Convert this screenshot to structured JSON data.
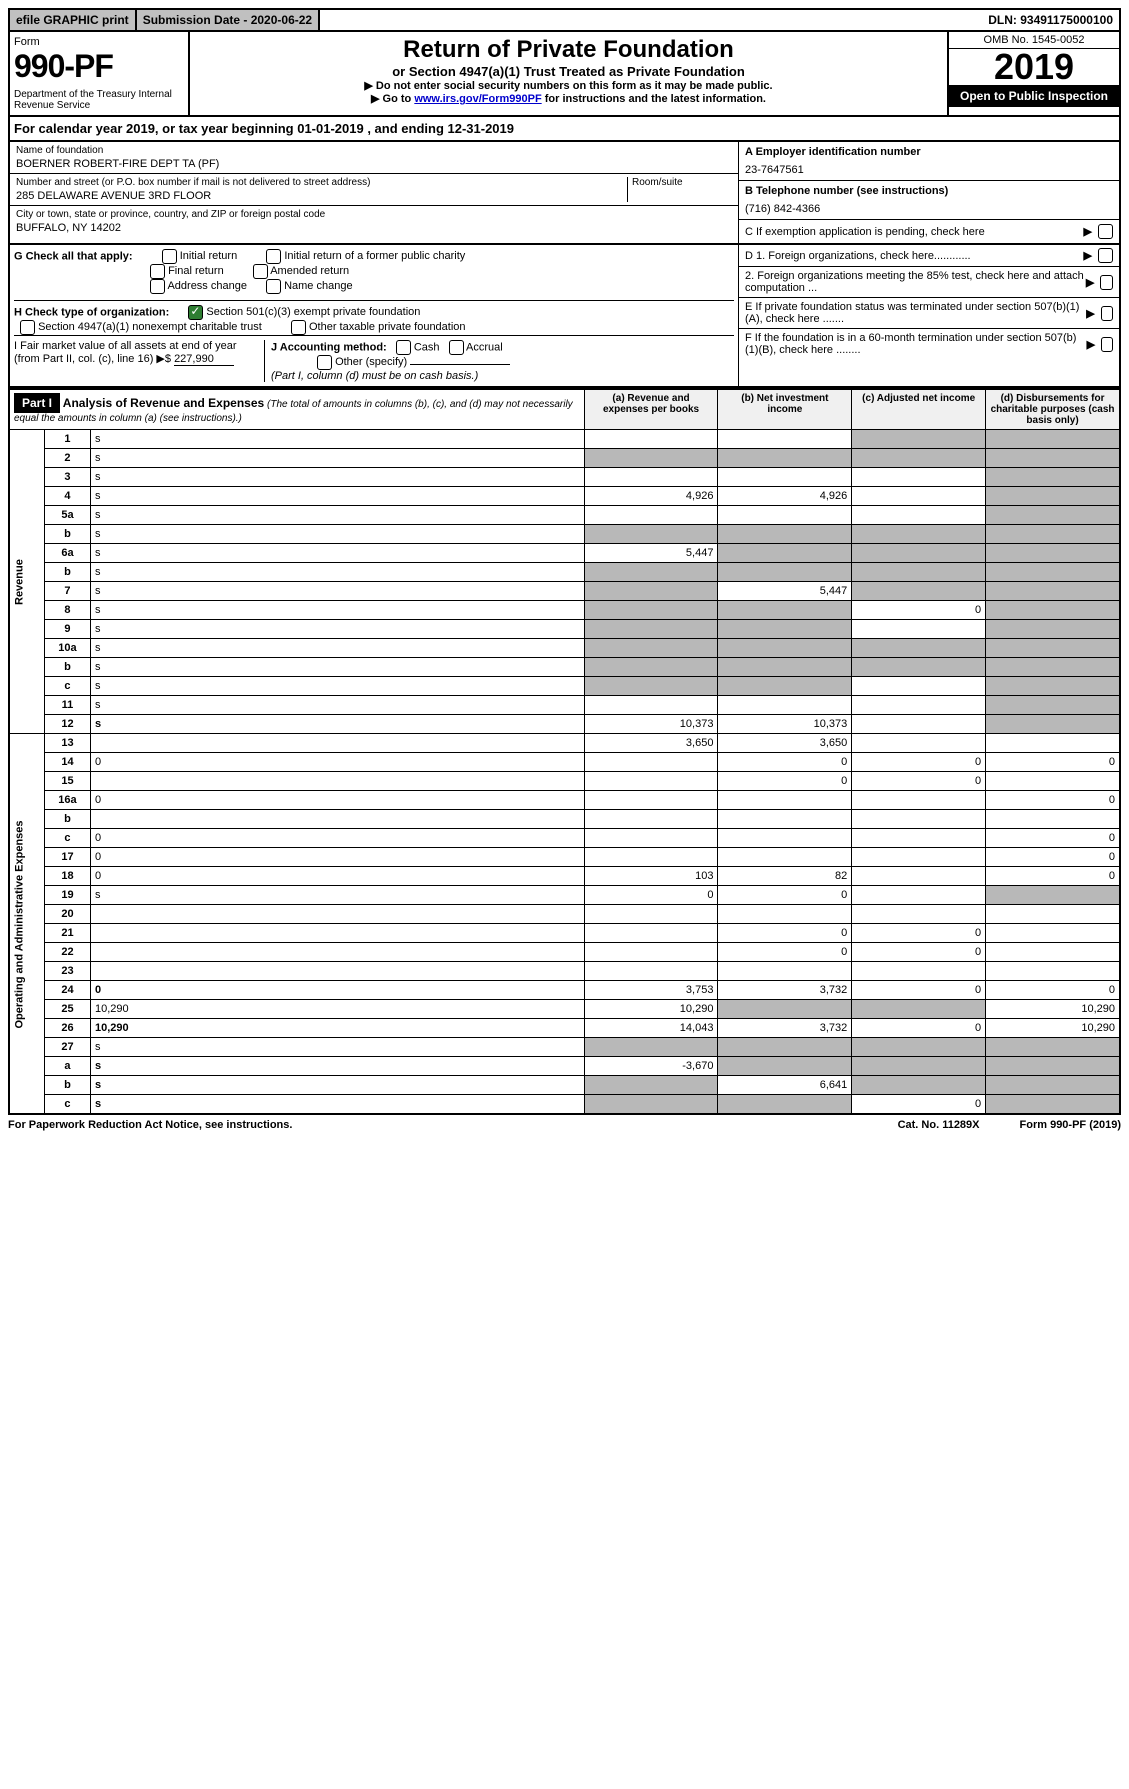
{
  "topbar": {
    "efile": "efile GRAPHIC print",
    "submission": "Submission Date - 2020-06-22",
    "dln": "DLN: 93491175000100"
  },
  "header": {
    "form_label": "Form",
    "form_number": "990-PF",
    "dept": "Department of the Treasury\nInternal Revenue Service",
    "title": "Return of Private Foundation",
    "subtitle": "or Section 4947(a)(1) Trust Treated as Private Foundation",
    "note1": "▶ Do not enter social security numbers on this form as it may be made public.",
    "note2_pre": "▶ Go to ",
    "note2_link": "www.irs.gov/Form990PF",
    "note2_post": " for instructions and the latest information.",
    "omb": "OMB No. 1545-0052",
    "year": "2019",
    "open": "Open to Public Inspection"
  },
  "cal_year": "For calendar year 2019, or tax year beginning 01-01-2019           , and ending 12-31-2019",
  "entity": {
    "name_label": "Name of foundation",
    "name": "BOERNER ROBERT-FIRE DEPT TA (PF)",
    "addr_label": "Number and street (or P.O. box number if mail is not delivered to street address)",
    "addr": "285 DELAWARE AVENUE 3RD FLOOR",
    "room_label": "Room/suite",
    "city_label": "City or town, state or province, country, and ZIP or foreign postal code",
    "city": "BUFFALO, NY  14202",
    "a_label": "A Employer identification number",
    "a_val": "23-7647561",
    "b_label": "B Telephone number (see instructions)",
    "b_val": "(716) 842-4366",
    "c_label": "C If exemption application is pending, check here"
  },
  "checks": {
    "g_label": "G Check all that apply:",
    "g_opts": [
      "Initial return",
      "Initial return of a former public charity",
      "Final return",
      "Amended return",
      "Address change",
      "Name change"
    ],
    "h_label": "H Check type of organization:",
    "h_opts": [
      "Section 501(c)(3) exempt private foundation",
      "Section 4947(a)(1) nonexempt charitable trust",
      "Other taxable private foundation"
    ],
    "i_label": "I Fair market value of all assets at end of year (from Part II, col. (c), line 16) ▶$",
    "i_val": "227,990",
    "j_label": "J Accounting method:",
    "j_opts": [
      "Cash",
      "Accrual",
      "Other (specify)"
    ],
    "j_note": "(Part I, column (d) must be on cash basis.)",
    "d1": "D 1. Foreign organizations, check here............",
    "d2": "2. Foreign organizations meeting the 85% test, check here and attach computation ...",
    "e": "E If private foundation status was terminated under section 507(b)(1)(A), check here .......",
    "f": "F If the foundation is in a 60-month termination under section 507(b)(1)(B), check here ........"
  },
  "part1": {
    "label": "Part I",
    "title": "Analysis of Revenue and Expenses",
    "note": "(The total of amounts in columns (b), (c), and (d) may not necessarily equal the amounts in column (a) (see instructions).)",
    "col_a": "(a) Revenue and expenses per books",
    "col_b": "(b) Net investment income",
    "col_c": "(c) Adjusted net income",
    "col_d": "(d) Disbursements for charitable purposes (cash basis only)"
  },
  "sections": {
    "revenue": "Revenue",
    "expenses": "Operating and Administrative Expenses"
  },
  "rows": [
    {
      "n": "1",
      "d": "s",
      "a": "",
      "b": "",
      "c": "s"
    },
    {
      "n": "2",
      "d": "s",
      "a": "s",
      "b": "s",
      "c": "s"
    },
    {
      "n": "3",
      "d": "s",
      "a": "",
      "b": "",
      "c": ""
    },
    {
      "n": "4",
      "d": "s",
      "a": "4,926",
      "b": "4,926",
      "c": ""
    },
    {
      "n": "5a",
      "d": "s",
      "a": "",
      "b": "",
      "c": ""
    },
    {
      "n": "b",
      "d": "s",
      "a": "s",
      "b": "s",
      "c": "s"
    },
    {
      "n": "6a",
      "d": "s",
      "a": "5,447",
      "b": "s",
      "c": "s"
    },
    {
      "n": "b",
      "d": "s",
      "a": "s",
      "b": "s",
      "c": "s"
    },
    {
      "n": "7",
      "d": "s",
      "a": "s",
      "b": "5,447",
      "c": "s"
    },
    {
      "n": "8",
      "d": "s",
      "a": "s",
      "b": "s",
      "c": "0"
    },
    {
      "n": "9",
      "d": "s",
      "a": "s",
      "b": "s",
      "c": ""
    },
    {
      "n": "10a",
      "d": "s",
      "a": "s",
      "b": "s",
      "c": "s"
    },
    {
      "n": "b",
      "d": "s",
      "a": "s",
      "b": "s",
      "c": "s"
    },
    {
      "n": "c",
      "d": "s",
      "a": "s",
      "b": "s",
      "c": ""
    },
    {
      "n": "11",
      "d": "s",
      "a": "",
      "b": "",
      "c": ""
    },
    {
      "n": "12",
      "d": "s",
      "a": "10,373",
      "b": "10,373",
      "c": "",
      "bold": true
    },
    {
      "n": "13",
      "d": "",
      "a": "3,650",
      "b": "3,650",
      "c": ""
    },
    {
      "n": "14",
      "d": "0",
      "a": "",
      "b": "0",
      "c": "0"
    },
    {
      "n": "15",
      "d": "",
      "a": "",
      "b": "0",
      "c": "0"
    },
    {
      "n": "16a",
      "d": "0",
      "a": "",
      "b": "",
      "c": ""
    },
    {
      "n": "b",
      "d": "",
      "a": "",
      "b": "",
      "c": ""
    },
    {
      "n": "c",
      "d": "0",
      "a": "",
      "b": "",
      "c": ""
    },
    {
      "n": "17",
      "d": "0",
      "a": "",
      "b": "",
      "c": ""
    },
    {
      "n": "18",
      "d": "0",
      "a": "103",
      "b": "82",
      "c": ""
    },
    {
      "n": "19",
      "d": "s",
      "a": "0",
      "b": "0",
      "c": ""
    },
    {
      "n": "20",
      "d": "",
      "a": "",
      "b": "",
      "c": ""
    },
    {
      "n": "21",
      "d": "",
      "a": "",
      "b": "0",
      "c": "0"
    },
    {
      "n": "22",
      "d": "",
      "a": "",
      "b": "0",
      "c": "0"
    },
    {
      "n": "23",
      "d": "",
      "a": "",
      "b": "",
      "c": ""
    },
    {
      "n": "24",
      "d": "0",
      "a": "3,753",
      "b": "3,732",
      "c": "0",
      "bold": true
    },
    {
      "n": "25",
      "d": "10,290",
      "a": "10,290",
      "b": "s",
      "c": "s"
    },
    {
      "n": "26",
      "d": "10,290",
      "a": "14,043",
      "b": "3,732",
      "c": "0",
      "bold": true
    },
    {
      "n": "27",
      "d": "s",
      "a": "s",
      "b": "s",
      "c": "s"
    },
    {
      "n": "a",
      "d": "s",
      "a": "-3,670",
      "b": "s",
      "c": "s",
      "bold": true
    },
    {
      "n": "b",
      "d": "s",
      "a": "s",
      "b": "6,641",
      "c": "s",
      "bold": true
    },
    {
      "n": "c",
      "d": "s",
      "a": "s",
      "b": "s",
      "c": "0",
      "bold": true
    }
  ],
  "footer": {
    "left": "For Paperwork Reduction Act Notice, see instructions.",
    "mid": "Cat. No. 11289X",
    "right": "Form 990-PF (2019)"
  }
}
